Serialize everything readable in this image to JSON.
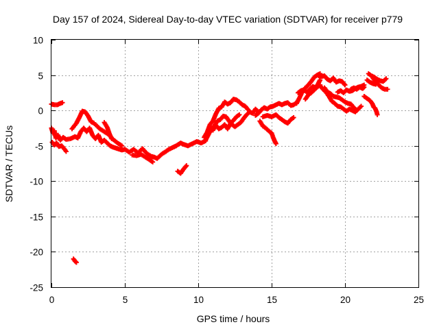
{
  "chart_data": {
    "type": "scatter",
    "title": "Day 157 of 2024, Sidereal Day-to-day VTEC variation (SDTVAR) for receiver p779",
    "xlabel": "GPS time / hours",
    "ylabel": "SDTVAR / TECUs",
    "xlim": [
      0,
      25
    ],
    "ylim": [
      -25,
      10
    ],
    "x_ticks": [
      "0",
      "5",
      "10",
      "15",
      "20",
      "25"
    ],
    "y_ticks": [
      "-25",
      "-20",
      "-15",
      "-10",
      "-5",
      "0",
      "5",
      "10"
    ],
    "grid": true,
    "marker": "plus",
    "series": [
      {
        "name": "SDTVAR",
        "color": "#ff0000",
        "segments": [
          [
            [
              0.0,
              -2.5
            ],
            [
              0.1,
              -3.2
            ],
            [
              0.2,
              -2.9
            ],
            [
              0.3,
              -3.9
            ],
            [
              0.45,
              -3.5
            ],
            [
              0.6,
              -4.2
            ],
            [
              0.8,
              -3.8
            ],
            [
              1.0,
              -4.1
            ],
            [
              1.3,
              -4.0
            ],
            [
              1.6,
              -3.7
            ],
            [
              1.8,
              -3.9
            ],
            [
              2.0,
              -3.0
            ],
            [
              2.2,
              -2.5
            ],
            [
              2.4,
              -3.0
            ],
            [
              2.6,
              -2.5
            ],
            [
              2.8,
              -3.5
            ],
            [
              3.0,
              -4.0
            ],
            [
              3.2,
              -3.5
            ],
            [
              3.4,
              -4.5
            ],
            [
              3.6,
              -4.2
            ],
            [
              3.8,
              -4.6
            ],
            [
              4.0,
              -5.0
            ],
            [
              4.2,
              -5.2
            ],
            [
              4.5,
              -5.4
            ],
            [
              4.8,
              -5.6
            ],
            [
              5.0,
              -5.5
            ],
            [
              5.3,
              -5.9
            ],
            [
              5.6,
              -5.5
            ],
            [
              5.9,
              -6.0
            ],
            [
              6.2,
              -5.4
            ],
            [
              6.5,
              -6.1
            ],
            [
              6.8,
              -6.5
            ],
            [
              7.0,
              -6.6
            ],
            [
              7.2,
              -6.8
            ],
            [
              7.5,
              -6.2
            ],
            [
              7.8,
              -5.8
            ],
            [
              8.0,
              -5.5
            ],
            [
              8.3,
              -5.2
            ],
            [
              8.5,
              -5.0
            ],
            [
              8.8,
              -4.6
            ],
            [
              9.0,
              -4.8
            ],
            [
              9.3,
              -5.0
            ],
            [
              9.6,
              -4.7
            ],
            [
              9.9,
              -4.4
            ],
            [
              10.2,
              -4.6
            ],
            [
              10.5,
              -4.3
            ]
          ],
          [
            [
              0.05,
              -4.5
            ],
            [
              0.2,
              -4.9
            ],
            [
              0.35,
              -4.6
            ],
            [
              0.5,
              -5.1
            ],
            [
              0.7,
              -5.0
            ],
            [
              0.9,
              -5.5
            ],
            [
              1.0,
              -5.8
            ]
          ],
          [
            [
              3.0,
              -2.0
            ],
            [
              3.3,
              -2.6
            ],
            [
              3.6,
              -3.0
            ],
            [
              3.9,
              -3.4
            ],
            [
              4.2,
              -4.1
            ],
            [
              4.5,
              -4.6
            ],
            [
              4.8,
              -5.0
            ]
          ],
          [
            [
              1.4,
              -2.6
            ],
            [
              1.7,
              -1.8
            ],
            [
              1.9,
              -1.0
            ],
            [
              2.1,
              -0.1
            ],
            [
              2.3,
              -0.2
            ],
            [
              2.5,
              -0.8
            ],
            [
              2.7,
              -1.6
            ],
            [
              2.9,
              -1.8
            ]
          ],
          [
            [
              3.6,
              -1.7
            ],
            [
              3.8,
              -2.4
            ],
            [
              3.95,
              -3.3
            ],
            [
              4.1,
              -4.0
            ]
          ],
          [
            [
              5.5,
              -6.3
            ],
            [
              5.8,
              -6.4
            ],
            [
              6.1,
              -6.2
            ],
            [
              6.4,
              -6.6
            ],
            [
              6.7,
              -7.0
            ],
            [
              6.9,
              -7.3
            ]
          ],
          [
            [
              0.0,
              0.9
            ],
            [
              0.2,
              0.8
            ],
            [
              0.4,
              0.8
            ],
            [
              0.6,
              1.0
            ],
            [
              0.75,
              1.1
            ]
          ],
          [
            [
              1.5,
              -21.0
            ],
            [
              1.6,
              -21.3
            ],
            [
              1.7,
              -21.5
            ]
          ],
          [
            [
              8.6,
              -8.6
            ],
            [
              8.8,
              -8.9
            ],
            [
              9.0,
              -8.3
            ],
            [
              9.2,
              -7.8
            ]
          ],
          [
            [
              10.5,
              -4.2
            ],
            [
              10.7,
              -3.4
            ],
            [
              10.9,
              -2.6
            ],
            [
              11.1,
              -2.2
            ],
            [
              11.3,
              -1.5
            ],
            [
              11.5,
              -1.3
            ],
            [
              11.7,
              -0.8
            ],
            [
              11.9,
              -0.9
            ],
            [
              12.1,
              -1.5
            ],
            [
              12.3,
              -2.0
            ],
            [
              12.5,
              -2.3
            ],
            [
              12.7,
              -2.0
            ],
            [
              12.9,
              -1.7
            ],
            [
              13.1,
              -1.1
            ],
            [
              13.3,
              -0.6
            ],
            [
              13.5,
              -0.2
            ],
            [
              13.7,
              -0.4
            ],
            [
              13.9,
              0.2
            ],
            [
              14.1,
              -0.2
            ]
          ],
          [
            [
              10.4,
              -3.8
            ],
            [
              10.6,
              -3.1
            ],
            [
              10.8,
              -2.0
            ],
            [
              11.0,
              -1.5
            ],
            [
              11.2,
              -0.5
            ],
            [
              11.4,
              0.3
            ],
            [
              11.6,
              0.5
            ],
            [
              11.8,
              1.2
            ],
            [
              12.0,
              0.9
            ],
            [
              12.2,
              1.1
            ],
            [
              12.4,
              1.6
            ],
            [
              12.6,
              1.5
            ],
            [
              12.8,
              1.2
            ],
            [
              13.0,
              0.8
            ],
            [
              13.2,
              0.6
            ],
            [
              13.4,
              0.1
            ]
          ],
          [
            [
              11.0,
              -2.8
            ],
            [
              11.2,
              -2.1
            ],
            [
              11.4,
              -2.6
            ],
            [
              11.6,
              -2.4
            ],
            [
              11.8,
              -2.0
            ],
            [
              12.0,
              -2.6
            ],
            [
              12.2,
              -1.8
            ],
            [
              12.4,
              -1.4
            ],
            [
              12.6,
              -0.9
            ],
            [
              12.8,
              -0.6
            ]
          ],
          [
            [
              13.9,
              -0.7
            ],
            [
              14.1,
              -0.4
            ],
            [
              14.3,
              0.1
            ],
            [
              14.5,
              0.4
            ],
            [
              14.7,
              0.2
            ],
            [
              14.9,
              0.5
            ],
            [
              15.1,
              0.6
            ],
            [
              15.3,
              0.8
            ],
            [
              15.5,
              1.0
            ],
            [
              15.7,
              0.8
            ],
            [
              15.9,
              1.0
            ],
            [
              16.1,
              1.1
            ],
            [
              16.3,
              0.7
            ],
            [
              16.5,
              0.8
            ],
            [
              16.7,
              1.1
            ]
          ],
          [
            [
              14.2,
              -1.5
            ],
            [
              14.4,
              -2.2
            ],
            [
              14.6,
              -2.5
            ],
            [
              14.8,
              -2.9
            ],
            [
              15.0,
              -3.2
            ],
            [
              15.1,
              -3.8
            ],
            [
              15.2,
              -4.3
            ],
            [
              15.3,
              -4.7
            ]
          ],
          [
            [
              14.4,
              -0.9
            ],
            [
              14.7,
              -0.7
            ],
            [
              15.0,
              -0.9
            ],
            [
              15.3,
              -0.6
            ],
            [
              15.5,
              -1.0
            ],
            [
              15.7,
              -1.3
            ],
            [
              15.9,
              -1.6
            ],
            [
              16.1,
              -1.8
            ],
            [
              16.3,
              -1.3
            ],
            [
              16.5,
              -1.0
            ]
          ],
          [
            [
              16.7,
              1.0
            ],
            [
              16.9,
              1.8
            ],
            [
              17.1,
              2.7
            ],
            [
              17.3,
              3.2
            ],
            [
              17.5,
              3.6
            ],
            [
              17.7,
              4.1
            ],
            [
              17.9,
              4.7
            ],
            [
              18.1,
              5.0
            ],
            [
              18.3,
              5.2
            ]
          ],
          [
            [
              16.8,
              2.5
            ],
            [
              17.0,
              2.8
            ],
            [
              17.2,
              2.9
            ],
            [
              17.4,
              2.6
            ],
            [
              17.6,
              3.0
            ],
            [
              17.8,
              3.4
            ],
            [
              18.0,
              3.2
            ],
            [
              18.2,
              3.9
            ],
            [
              18.3,
              4.3
            ]
          ],
          [
            [
              17.3,
              1.6
            ],
            [
              17.5,
              2.2
            ],
            [
              17.7,
              2.5
            ],
            [
              17.9,
              2.9
            ],
            [
              18.1,
              3.3
            ],
            [
              18.3,
              3.6
            ]
          ],
          [
            [
              18.2,
              4.9
            ],
            [
              18.4,
              4.8
            ],
            [
              18.6,
              4.9
            ],
            [
              18.8,
              4.4
            ],
            [
              19.0,
              4.2
            ],
            [
              19.2,
              4.6
            ],
            [
              19.4,
              4.0
            ],
            [
              19.6,
              4.2
            ],
            [
              19.8,
              4.1
            ],
            [
              20.0,
              3.6
            ]
          ],
          [
            [
              18.3,
              3.5
            ],
            [
              18.5,
              3.0
            ],
            [
              18.7,
              2.6
            ],
            [
              18.9,
              2.0
            ],
            [
              19.1,
              1.3
            ],
            [
              19.3,
              1.0
            ],
            [
              19.5,
              0.6
            ],
            [
              19.7,
              0.5
            ],
            [
              19.9,
              0.2
            ],
            [
              20.1,
              -0.1
            ],
            [
              20.3,
              0.2
            ],
            [
              20.5,
              0.0
            ],
            [
              20.7,
              -0.2
            ],
            [
              20.9,
              0.2
            ],
            [
              21.1,
              0.6
            ]
          ],
          [
            [
              18.6,
              3.2
            ],
            [
              18.8,
              2.6
            ],
            [
              19.0,
              2.4
            ],
            [
              19.2,
              2.0
            ],
            [
              19.4,
              1.9
            ],
            [
              19.6,
              1.8
            ],
            [
              19.8,
              1.5
            ],
            [
              20.0,
              1.2
            ],
            [
              20.2,
              1.0
            ],
            [
              20.4,
              0.9
            ],
            [
              20.6,
              0.4
            ],
            [
              20.8,
              0.0
            ]
          ],
          [
            [
              19.5,
              2.6
            ],
            [
              19.7,
              2.8
            ],
            [
              19.9,
              2.5
            ],
            [
              20.1,
              2.9
            ],
            [
              20.3,
              2.7
            ],
            [
              20.5,
              2.8
            ],
            [
              20.7,
              3.1
            ],
            [
              20.9,
              3.3
            ],
            [
              21.1,
              3.4
            ],
            [
              21.3,
              3.6
            ]
          ],
          [
            [
              20.4,
              3.0
            ],
            [
              20.6,
              3.2
            ],
            [
              20.8,
              3.0
            ],
            [
              21.0,
              3.3
            ],
            [
              21.2,
              3.1
            ],
            [
              21.3,
              3.3
            ]
          ],
          [
            [
              21.6,
              5.2
            ],
            [
              21.8,
              4.9
            ],
            [
              22.0,
              4.7
            ],
            [
              22.2,
              4.4
            ],
            [
              22.4,
              4.2
            ],
            [
              22.6,
              4.1
            ],
            [
              22.8,
              4.5
            ]
          ],
          [
            [
              21.9,
              4.6
            ],
            [
              22.1,
              4.0
            ],
            [
              22.3,
              3.6
            ],
            [
              22.5,
              3.2
            ],
            [
              22.7,
              3.0
            ],
            [
              22.9,
              3.0
            ]
          ],
          [
            [
              21.3,
              2.0
            ],
            [
              21.5,
              1.7
            ],
            [
              21.7,
              1.4
            ],
            [
              21.85,
              1.0
            ],
            [
              21.95,
              0.5
            ],
            [
              22.05,
              0.3
            ],
            [
              22.15,
              -0.2
            ],
            [
              22.2,
              -0.6
            ]
          ],
          [
            [
              21.5,
              4.3
            ],
            [
              21.7,
              4.0
            ],
            [
              21.9,
              3.8
            ],
            [
              22.1,
              3.7
            ]
          ]
        ]
      }
    ]
  }
}
